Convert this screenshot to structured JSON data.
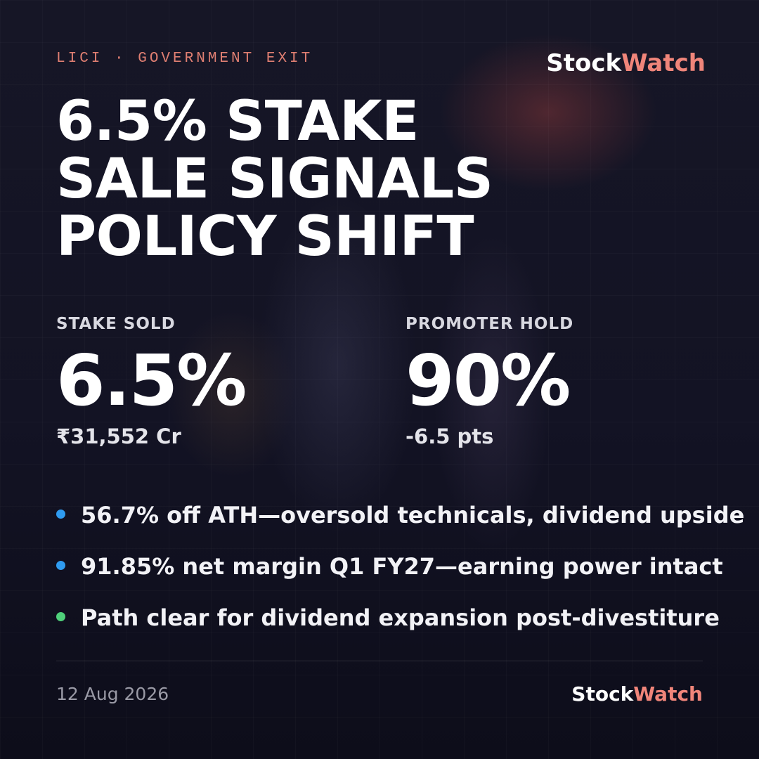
{
  "header": {
    "eyebrow": "LICI · GOVERNMENT EXIT",
    "brand": {
      "first": "Stock",
      "second": "Watch"
    }
  },
  "headline": "6.5% STAKE SALE SIGNALS POLICY SHIFT",
  "stats": [
    {
      "label": "STAKE SOLD",
      "value": "6.5%",
      "detail": "₹31,552 Cr"
    },
    {
      "label": "PROMOTER HOLD",
      "value": "90%",
      "detail": "-6.5 pts"
    }
  ],
  "bullets": [
    {
      "text": "56.7% off ATH—oversold technicals, dividend upside",
      "color": "#2f9bf0"
    },
    {
      "text": "91.85% net margin Q1 FY27—earning power intact",
      "color": "#2f9bf0"
    },
    {
      "text": "Path clear for dividend expansion post-divestiture",
      "color": "#4fd07a"
    }
  ],
  "footer": {
    "date": "12 Aug 2026",
    "brand": {
      "first": "Stock",
      "second": "Watch"
    }
  }
}
